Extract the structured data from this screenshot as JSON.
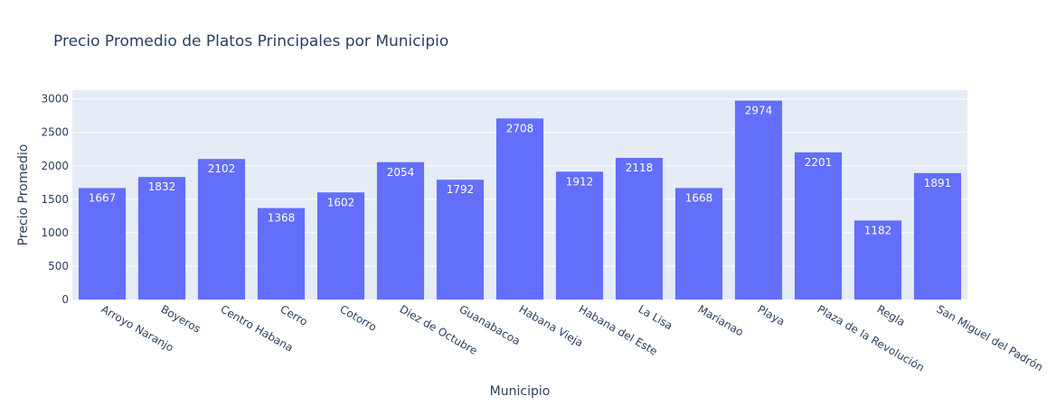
{
  "chart_data": {
    "type": "bar",
    "title": "Precio Promedio de Platos Principales por Municipio",
    "xlabel": "Municipio",
    "ylabel": "Precio Promedio",
    "categories": [
      "Arroyo Naranjo",
      "Boyeros",
      "Centro Habana",
      "Cerro",
      "Cotorro",
      "Diez de Octubre",
      "Guanabacoa",
      "Habana Vieja",
      "Habana del Este",
      "La Lisa",
      "Marianao",
      "Playa",
      "Plaza de la Revolución",
      "Regla",
      "San Miguel del Padrón"
    ],
    "values": [
      1667,
      1832,
      2102,
      1368,
      1602,
      2054,
      1792,
      2708,
      1912,
      2118,
      1668,
      2974,
      2201,
      1182,
      1891
    ],
    "ylim": [
      0,
      3130
    ],
    "yticks": [
      0,
      500,
      1000,
      1500,
      2000,
      2500,
      3000
    ],
    "grid": true,
    "colors": {
      "bar": "#636efa",
      "plot_bg": "#e5ecf6",
      "grid": "#ffffff",
      "text": "#2a3f5f",
      "bar_label": "#ffffff"
    }
  }
}
